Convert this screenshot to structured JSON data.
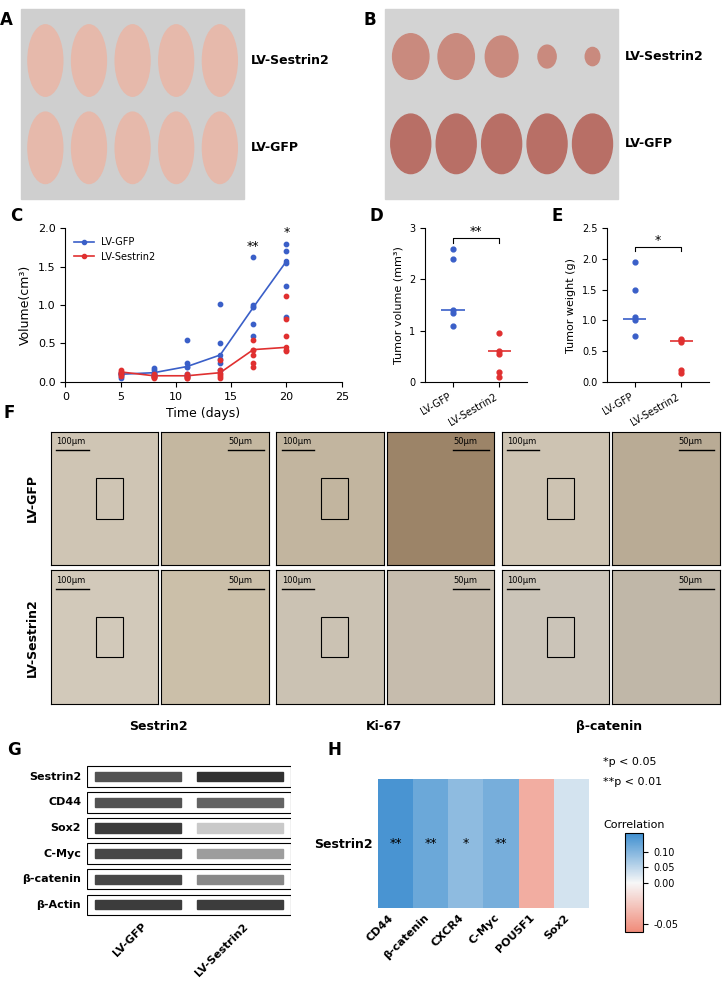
{
  "chart_data": [
    {
      "panel": "C",
      "type": "line",
      "x": [
        5,
        8,
        11,
        14,
        17,
        20
      ],
      "xlabel": "Time (days)",
      "ylabel": "Volume(cm³)",
      "xlim": [
        0,
        25
      ],
      "xticks": [
        0,
        5,
        10,
        15,
        20,
        25
      ],
      "ylim": [
        0,
        2.0
      ],
      "yticks": [
        {
          "value": 0,
          "label": "0.0"
        },
        {
          "value": 0.5,
          "label": "0.5"
        },
        {
          "value": 1.0,
          "label": "1.0"
        },
        {
          "value": 1.5,
          "label": "1.5"
        },
        {
          "value": 2.0,
          "label": "2.0"
        }
      ],
      "legend": "upper left",
      "marker": "o",
      "series": [
        {
          "name": "LV-GFP",
          "color": "#3a5fc8",
          "values": [
            0.1,
            0.12,
            0.2,
            0.35,
            0.97,
            1.57
          ],
          "points": [
            [
              0.12,
              0.1,
              0.1,
              0.08,
              0.05
            ],
            [
              0.18,
              0.15,
              0.1,
              0.1,
              0.08
            ],
            [
              0.55,
              0.25,
              0.2,
              0.1,
              0.08
            ],
            [
              1.02,
              0.5,
              0.3,
              0.25,
              0.15
            ],
            [
              1.62,
              1.0,
              0.98,
              0.75,
              0.6
            ],
            [
              1.8,
              1.7,
              1.55,
              1.25,
              0.85
            ]
          ]
        },
        {
          "name": "LV-Sestrin2",
          "color": "#e03030",
          "values": [
            0.13,
            0.08,
            0.08,
            0.12,
            0.42,
            0.45
          ],
          "points": [
            [
              0.15,
              0.13,
              0.12,
              0.1,
              0.08
            ],
            [
              0.1,
              0.08,
              0.07,
              0.06,
              0.05
            ],
            [
              0.1,
              0.08,
              0.06,
              0.05,
              0.05
            ],
            [
              0.28,
              0.15,
              0.1,
              0.08,
              0.05
            ],
            [
              0.55,
              0.42,
              0.35,
              0.25,
              0.2
            ],
            [
              1.12,
              0.82,
              0.6,
              0.42,
              0.4
            ]
          ]
        }
      ],
      "annotations": [
        {
          "x": 17,
          "y": 1.68,
          "text": "**"
        },
        {
          "x": 20,
          "y": 1.86,
          "text": "*"
        }
      ]
    },
    {
      "panel": "D",
      "type": "scatter",
      "categories": [
        "LV-GFP",
        "LV-Sestrin2"
      ],
      "ylabel": "Tumor volume (mm³)",
      "ylim": [
        0,
        3
      ],
      "yticks": [
        0,
        1,
        2,
        3
      ],
      "colors": [
        "#3a5fc8",
        "#e03030"
      ],
      "values": [
        [
          2.6,
          2.4,
          1.4,
          1.35,
          1.1
        ],
        [
          0.95,
          0.6,
          0.55,
          0.2,
          0.1
        ]
      ],
      "medians": [
        1.4,
        0.6
      ],
      "annotations": [
        {
          "text": "**",
          "y": 2.8
        }
      ]
    },
    {
      "panel": "E",
      "type": "scatter",
      "categories": [
        "LV-GFP",
        "LV-Sestrin2"
      ],
      "ylabel": "Tumor weight (g)",
      "ylim": [
        0,
        2.5
      ],
      "yticks": [
        {
          "value": 0,
          "label": "0.0"
        },
        {
          "value": 0.5,
          "label": "0.5"
        },
        {
          "value": 1.0,
          "label": "1.0"
        },
        {
          "value": 1.5,
          "label": "1.5"
        },
        {
          "value": 2.0,
          "label": "2.0"
        },
        {
          "value": 2.5,
          "label": "2.5"
        }
      ],
      "colors": [
        "#3a5fc8",
        "#e03030"
      ],
      "values": [
        [
          1.95,
          1.5,
          1.05,
          1.0,
          0.75
        ],
        [
          0.7,
          0.68,
          0.65,
          0.2,
          0.15
        ]
      ],
      "medians": [
        1.03,
        0.67
      ],
      "annotations": [
        {
          "text": "*",
          "y": 2.2
        }
      ]
    },
    {
      "panel": "H",
      "type": "heatmap",
      "rows": [
        "Sestrin2"
      ],
      "columns": [
        "CD44",
        "β-catenin",
        "CXCR4",
        "C-Myc",
        "POU5F1",
        "Sox2"
      ],
      "cells": [
        [
          0.15,
          0.12,
          0.09,
          0.11,
          -0.04,
          0.03
        ]
      ],
      "cell_labels": [
        [
          "**",
          "**",
          "*",
          "**",
          null,
          null
        ]
      ],
      "colorbar": {
        "label": "Correlation",
        "range": [
          -0.06,
          0.16
        ],
        "ticks": [
          {
            "value": 0.1,
            "label": "0.10"
          },
          {
            "value": 0.05,
            "label": "0.05"
          },
          {
            "value": 0,
            "label": "0.00"
          },
          {
            "value": -0.05,
            "label": "-0.05"
          }
        ]
      },
      "annotations": [
        "*p < 0.05",
        "**p < 0.01"
      ]
    }
  ],
  "images": {
    "A": {
      "panel": "A",
      "labels": [
        "LV-Sestrin2",
        "LV-GFP"
      ]
    },
    "B": {
      "panel": "B",
      "labels": [
        "LV-Sestrin2",
        "LV-GFP"
      ]
    },
    "F": {
      "panel": "F",
      "rows": [
        "LV-GFP",
        "LV-Sestrin2"
      ],
      "columns": [
        "Sestrin2",
        "Ki-67",
        "β-catenin"
      ],
      "scale_bars": [
        "100μm",
        "50μm"
      ]
    },
    "G": {
      "panel": "G",
      "proteins": [
        "Sestrin2",
        "CD44",
        "Sox2",
        "C-Myc",
        "β-catenin",
        "β-Actin"
      ],
      "lanes": [
        "LV-GFP",
        "LV-Sestrin2"
      ],
      "band_intensity": [
        [
          0.8,
          0.95
        ],
        [
          0.8,
          0.72
        ],
        [
          0.9,
          0.25
        ],
        [
          0.85,
          0.45
        ],
        [
          0.85,
          0.55
        ],
        [
          0.9,
          0.9
        ]
      ]
    }
  }
}
